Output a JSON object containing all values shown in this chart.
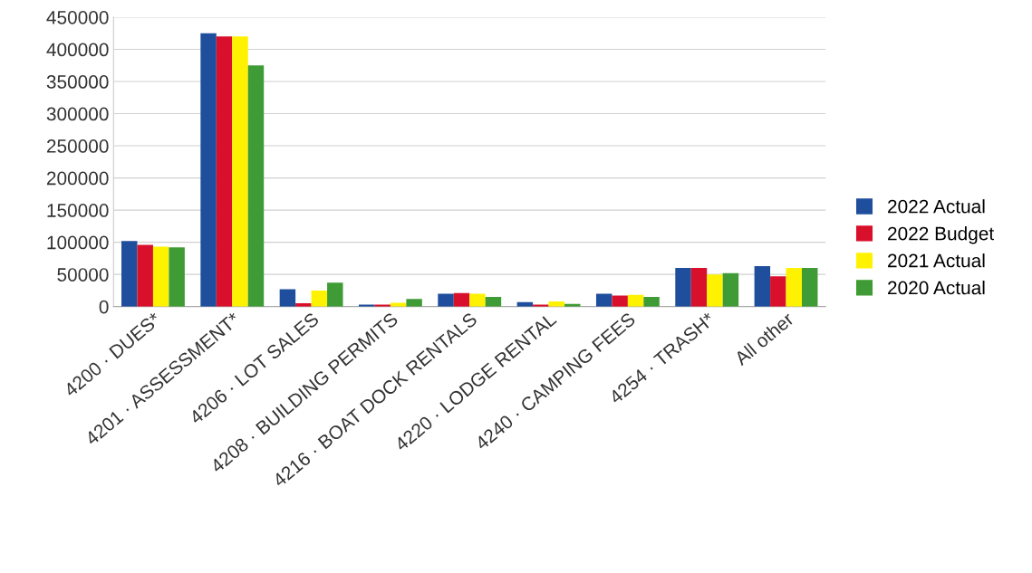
{
  "chart_data": {
    "type": "bar",
    "categories": [
      "4200 · DUES*",
      "4201 · ASSESSMENT*",
      "4206 · LOT SALES",
      "4208 · BUILDING PERMITS",
      "4216 · BOAT DOCK RENTALS",
      "4220 · LODGE RENTAL",
      "4240 · CAMPING FEES",
      "4254 · TRASH*",
      "All other"
    ],
    "series": [
      {
        "name": "2022 Actual",
        "color": "#1f4e9c",
        "values": [
          102000,
          425000,
          27000,
          3000,
          20000,
          7000,
          20000,
          60000,
          63000
        ]
      },
      {
        "name": "2022 Budget",
        "color": "#d9102b",
        "values": [
          96000,
          420000,
          5000,
          3000,
          21000,
          3000,
          17000,
          60000,
          47000
        ]
      },
      {
        "name": "2021 Actual",
        "color": "#fff200",
        "values": [
          93000,
          420000,
          25000,
          6000,
          20000,
          8000,
          18000,
          50000,
          60000
        ]
      },
      {
        "name": "2020 Actual",
        "color": "#3f9b35",
        "values": [
          92000,
          375000,
          37000,
          12000,
          15000,
          4000,
          15000,
          52000,
          60000
        ]
      }
    ],
    "ylim": [
      0,
      450000
    ],
    "yticks": [
      0,
      50000,
      100000,
      150000,
      200000,
      250000,
      300000,
      350000,
      400000,
      450000
    ],
    "grid": "y",
    "legend": "right"
  }
}
